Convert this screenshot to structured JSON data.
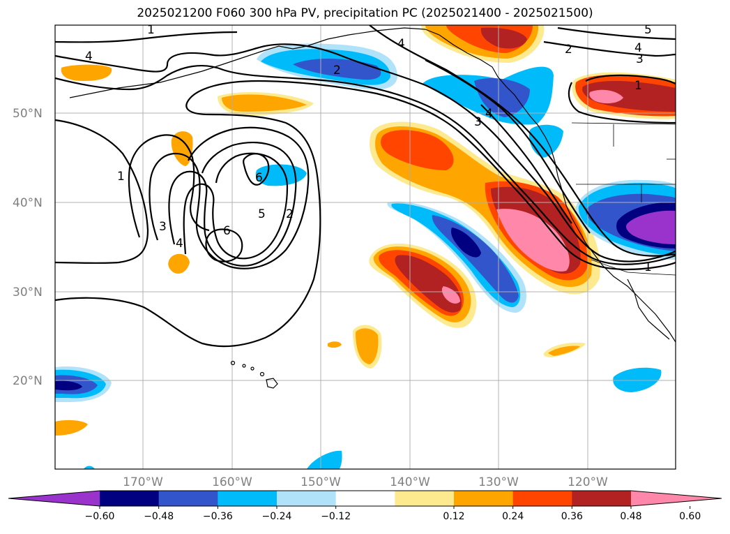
{
  "title": "2025021200 F060 300 hPa PV, precipitation PC (2025021400 - 2025021500)",
  "map": {
    "lat_labels": [
      "50°N",
      "40°N",
      "30°N",
      "20°N"
    ],
    "lon_labels": [
      "170°W",
      "160°W",
      "150°W",
      "140°W",
      "130°W",
      "120°W"
    ],
    "pv_contour_labels": [
      "1",
      "2",
      "3",
      "4",
      "5",
      "6"
    ]
  },
  "colorbar": {
    "tick_labels": [
      "−0.60",
      "−0.48",
      "−0.36",
      "−0.24",
      "−0.12",
      "0.12",
      "0.24",
      "0.36",
      "0.48",
      "0.60"
    ],
    "colors": [
      "#9933cc",
      "#000080",
      "#3355cc",
      "#00bbf9",
      "#b0e2fa",
      "#ffffff",
      "#fde98e",
      "#ffa500",
      "#ff4500",
      "#b22222",
      "#ff88aa"
    ],
    "extend": "both"
  }
}
